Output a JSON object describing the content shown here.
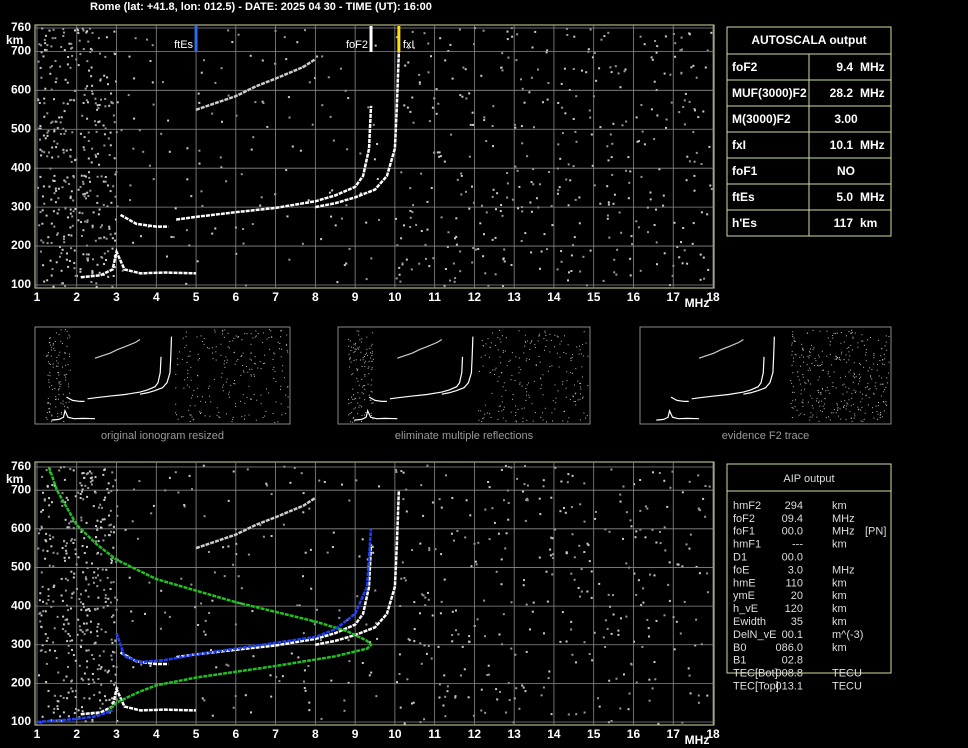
{
  "header": "Rome (lat: +41.8, lon: 012.5) - DATE: 2025 04 30 - TIME (UT): 16:00",
  "plots": [
    {
      "xlim": [
        1,
        18
      ],
      "ylim": [
        100,
        760
      ],
      "xticks": [
        1,
        2,
        3,
        4,
        5,
        6,
        7,
        8,
        9,
        10,
        11,
        12,
        13,
        14,
        15,
        16,
        17,
        18
      ],
      "yticks": [
        100,
        200,
        300,
        400,
        500,
        600,
        700,
        760
      ],
      "x_unit": "MHz",
      "y_unit": "km",
      "markers": [
        {
          "label": "ftEs",
          "freq": 5.0,
          "color": "#2a6cf0"
        },
        {
          "label": "foF2",
          "freq": 9.4,
          "color": "#ffffff"
        },
        {
          "label": "fxI",
          "freq": 10.1,
          "color": "#ffe000"
        }
      ],
      "traces": [
        {
          "color": "#ffffff",
          "x": [
            4.5,
            5,
            6,
            7,
            8,
            8.5,
            9,
            9.2,
            9.35,
            9.4
          ],
          "y": [
            268,
            275,
            287,
            298,
            315,
            330,
            352,
            380,
            450,
            560
          ]
        },
        {
          "color": "#ffffff",
          "x": [
            8,
            8.5,
            9,
            9.5,
            9.8,
            10,
            10.05,
            10.1
          ],
          "y": [
            300,
            310,
            325,
            345,
            380,
            450,
            560,
            700
          ]
        },
        {
          "color": "#ffffff",
          "x": [
            3.1,
            3.5,
            4,
            4.3
          ],
          "y": [
            280,
            257,
            250,
            250
          ]
        },
        {
          "color": "#ffffff",
          "x": [
            2.1,
            2.6,
            2.9,
            3,
            3.2,
            3.6,
            4.2,
            5
          ],
          "y": [
            120,
            125,
            140,
            185,
            140,
            130,
            132,
            130
          ]
        },
        {
          "color": "#cccccc",
          "x": [
            5,
            6,
            6.5,
            7,
            7.7,
            8
          ],
          "y": [
            550,
            585,
            610,
            630,
            660,
            680
          ]
        }
      ]
    },
    {
      "xlim": [
        1,
        18
      ],
      "ylim": [
        100,
        760
      ],
      "xticks": [
        1,
        2,
        3,
        4,
        5,
        6,
        7,
        8,
        9,
        10,
        11,
        12,
        13,
        14,
        15,
        16,
        17,
        18
      ],
      "yticks": [
        100,
        200,
        300,
        400,
        500,
        600,
        700,
        760
      ],
      "x_unit": "MHz",
      "y_unit": "km",
      "traces": [
        {
          "color": "#ffffff",
          "x": [
            4.5,
            5,
            6,
            7,
            8,
            8.5,
            9,
            9.2,
            9.35,
            9.4
          ],
          "y": [
            268,
            275,
            287,
            298,
            315,
            330,
            352,
            380,
            450,
            560
          ]
        },
        {
          "color": "#ffffff",
          "x": [
            8,
            8.5,
            9,
            9.5,
            9.8,
            10,
            10.05,
            10.1
          ],
          "y": [
            300,
            310,
            325,
            345,
            380,
            450,
            560,
            700
          ]
        },
        {
          "color": "#ffffff",
          "x": [
            3.1,
            3.5,
            4,
            4.3
          ],
          "y": [
            280,
            257,
            250,
            250
          ]
        },
        {
          "color": "#ffffff",
          "x": [
            2.1,
            2.6,
            2.9,
            3,
            3.2,
            3.6,
            4.2,
            5
          ],
          "y": [
            120,
            125,
            140,
            185,
            140,
            130,
            132,
            130
          ]
        },
        {
          "color": "#cccccc",
          "x": [
            5,
            6,
            6.5,
            7,
            7.7,
            8
          ],
          "y": [
            550,
            585,
            610,
            630,
            660,
            680
          ]
        },
        {
          "color": "#22c022",
          "x": [
            1.3,
            1.5,
            2,
            2.5,
            3,
            4,
            5,
            6,
            7,
            8,
            8.8,
            9.3,
            9.4,
            9.3,
            8.5,
            7,
            5,
            4,
            3.5,
            3,
            2.8
          ],
          "y": [
            760,
            700,
            610,
            560,
            520,
            470,
            440,
            410,
            385,
            360,
            335,
            310,
            300,
            290,
            270,
            245,
            215,
            195,
            175,
            150,
            130
          ]
        },
        {
          "color": "#2040ff",
          "x": [
            3,
            3.2,
            3.6,
            4.2,
            5,
            6,
            7,
            8,
            8.5,
            9,
            9.3,
            9.4
          ],
          "y": [
            330,
            270,
            255,
            260,
            275,
            290,
            305,
            320,
            340,
            380,
            450,
            600
          ]
        },
        {
          "color": "#2040ff",
          "x": [
            1,
            2,
            2.5,
            2.9
          ],
          "y": [
            100,
            108,
            115,
            130
          ]
        }
      ]
    }
  ],
  "autoscala": {
    "title": "AUTOSCALA output",
    "rows": [
      {
        "label": "foF2",
        "value": "9.4",
        "unit": "MHz",
        "color": "#ffffff"
      },
      {
        "label": "MUF(3000)F2",
        "value": "28.2",
        "unit": "MHz",
        "color": "#ffffff"
      },
      {
        "label": "M(3000)F2",
        "value": "3.00",
        "color": "#ffffff"
      },
      {
        "label": "fxI",
        "value": "10.1",
        "unit": "MHz",
        "color": "#ffe000"
      },
      {
        "label": "foF1",
        "value": "NO",
        "color": "#ff2020"
      },
      {
        "label": "ftEs",
        "value": "5.0",
        "unit": "MHz",
        "color": "#2a6cf0"
      },
      {
        "label": "h'Es",
        "value": "117",
        "unit": "km",
        "color": "#ffffff"
      }
    ]
  },
  "thumbnails": [
    "original ionogram resized",
    "eliminate multiple reflections",
    "evidence F2 trace"
  ],
  "aip": {
    "title": "AIP output",
    "rows": [
      [
        "hmF2",
        "294",
        "km"
      ],
      [
        "foF2",
        "09.4",
        "MHz"
      ],
      [
        "foF1",
        "00.0",
        "MHz",
        "[PN]"
      ],
      [
        "hmF1",
        "---",
        "km"
      ],
      [
        "D1",
        "00.0"
      ],
      [
        "foE",
        "3.0",
        "MHz"
      ],
      [
        "hmE",
        "110",
        "km"
      ],
      [
        "ymE",
        "20",
        "km"
      ],
      [
        "h_vE",
        "120",
        "km"
      ],
      [
        "Ewidth",
        "35",
        "km"
      ],
      [
        "DelN_vE",
        "00.1",
        "m^(-3)"
      ],
      [
        "B0",
        "086.0",
        "km"
      ],
      [
        "B1",
        "02.8"
      ],
      [
        "TEC[Bot]",
        "008.8",
        "TECU"
      ],
      [
        "TEC[Top]",
        "013.1",
        "TECU"
      ]
    ]
  }
}
